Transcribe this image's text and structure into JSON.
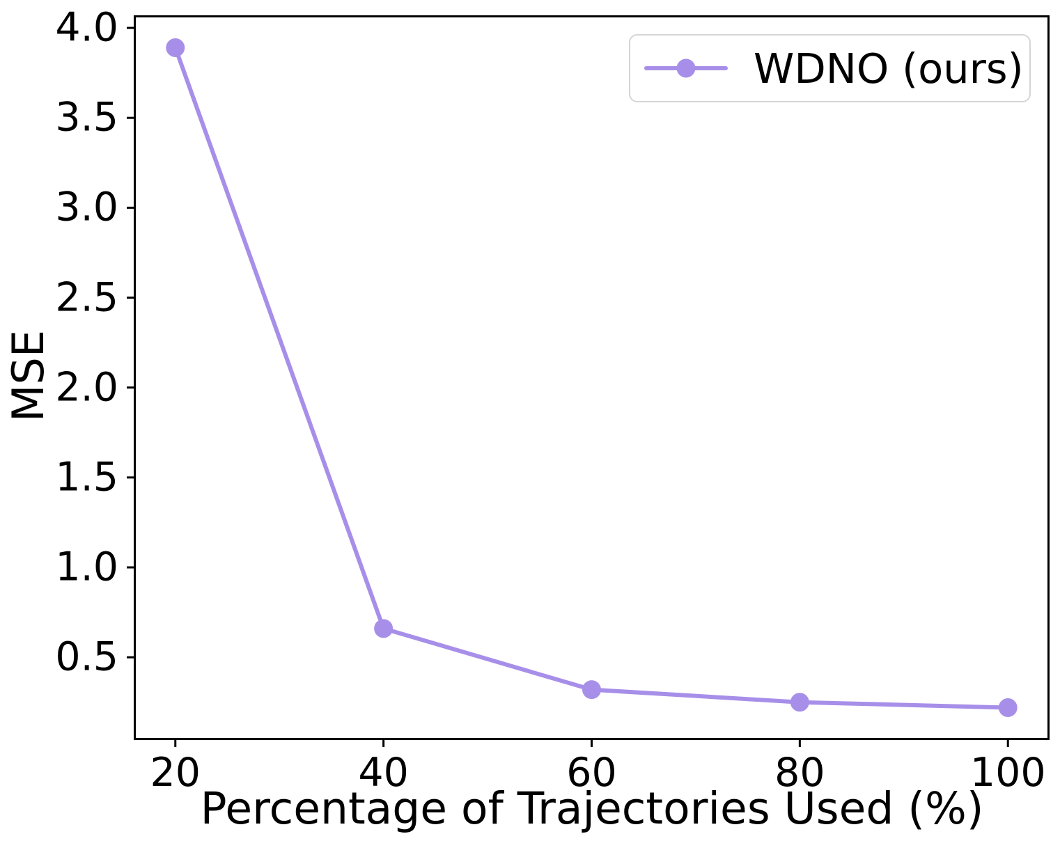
{
  "figure": {
    "background": "#ffffff",
    "spine_color": "#000000",
    "tick_color": "#000000",
    "text_color": "#000000"
  },
  "legend": {
    "label": "WDNO (ours)",
    "border_color": "#d5d5d5"
  },
  "chart_data": {
    "type": "line",
    "title": "",
    "xlabel": "Percentage of Trajectories Used (%)",
    "ylabel": "MSE",
    "x": [
      20,
      40,
      60,
      80,
      100
    ],
    "series": [
      {
        "name": "WDNO (ours)",
        "values": [
          3.89,
          0.66,
          0.32,
          0.25,
          0.22
        ],
        "color": "#a78fe9",
        "marker": "circle",
        "marker_size": 27,
        "line_width": 6
      }
    ],
    "xlim": [
      16,
      104
    ],
    "ylim": [
      0.04,
      4.07
    ],
    "x_ticks": [
      20,
      40,
      60,
      80,
      100
    ],
    "x_tick_labels": [
      "20",
      "40",
      "60",
      "80",
      "100"
    ],
    "y_ticks": [
      0.5,
      1.0,
      1.5,
      2.0,
      2.5,
      3.0,
      3.5,
      4.0
    ],
    "y_tick_labels": [
      "0.5",
      "1.0",
      "1.5",
      "2.0",
      "2.5",
      "3.0",
      "3.5",
      "4.0"
    ],
    "grid": false,
    "legend_position": "upper right"
  }
}
